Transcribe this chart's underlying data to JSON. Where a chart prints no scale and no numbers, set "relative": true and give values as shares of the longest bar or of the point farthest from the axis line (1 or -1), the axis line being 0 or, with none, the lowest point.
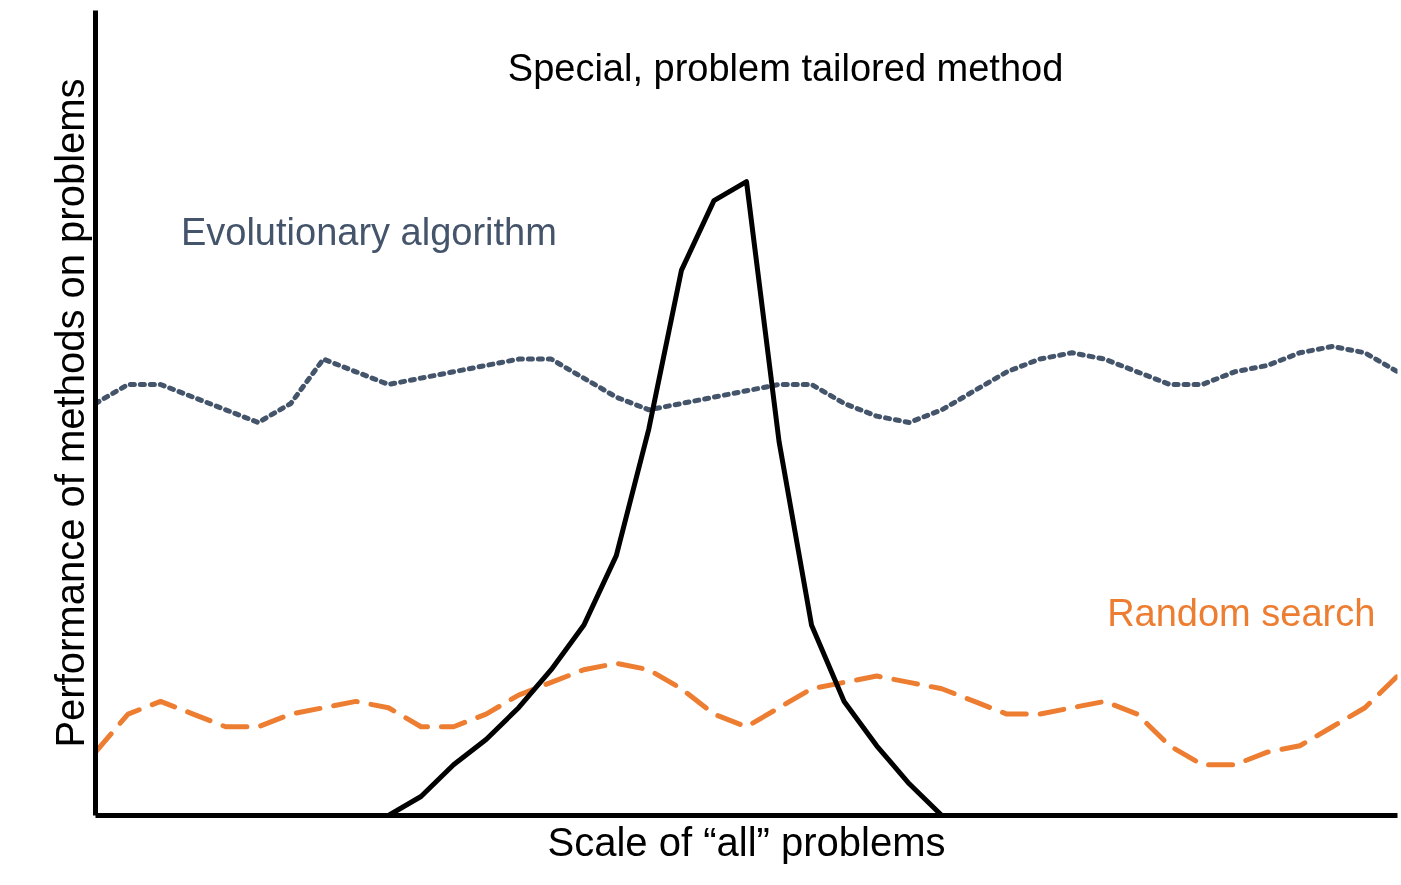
{
  "chart_data": {
    "type": "line",
    "relative": true,
    "xlabel": "Scale of “all” problems",
    "ylabel": "Performance of methods on problems",
    "categories": [
      null,
      null,
      null,
      null,
      null,
      null,
      null,
      null,
      null,
      null,
      null,
      null,
      null,
      null,
      null,
      null,
      null,
      null,
      null,
      null,
      null,
      null,
      null,
      null,
      null,
      null,
      null,
      null,
      null,
      null,
      null,
      null,
      null,
      null,
      null,
      null,
      null,
      null,
      null,
      null,
      null
    ],
    "series": [
      {
        "name": "Evolutionary algorithm",
        "color": "#44546a",
        "line_style": "dotted",
        "values": [
          0.65,
          0.68,
          0.68,
          0.66,
          0.64,
          0.62,
          0.65,
          0.72,
          0.7,
          0.68,
          0.69,
          0.7,
          0.71,
          0.72,
          0.72,
          0.69,
          0.66,
          0.64,
          0.65,
          0.66,
          0.67,
          0.68,
          0.68,
          0.65,
          0.63,
          0.62,
          0.64,
          0.67,
          0.7,
          0.72,
          0.73,
          0.72,
          0.7,
          0.68,
          0.68,
          0.7,
          0.71,
          0.73,
          0.74,
          0.73,
          0.7
        ]
      },
      {
        "name": "Random search",
        "color": "#ed7d31",
        "line_style": "dashed",
        "values": [
          0.1,
          0.16,
          0.18,
          0.16,
          0.14,
          0.14,
          0.16,
          0.17,
          0.18,
          0.17,
          0.14,
          0.14,
          0.16,
          0.19,
          0.21,
          0.23,
          0.24,
          0.23,
          0.2,
          0.16,
          0.14,
          0.17,
          0.2,
          0.21,
          0.22,
          0.21,
          0.2,
          0.18,
          0.16,
          0.16,
          0.17,
          0.18,
          0.16,
          0.11,
          0.08,
          0.08,
          0.1,
          0.11,
          0.14,
          0.17,
          0.22
        ]
      },
      {
        "name": "Special, problem tailored method",
        "color": "#000000",
        "line_style": "solid",
        "values": [
          null,
          null,
          null,
          null,
          null,
          null,
          null,
          null,
          null,
          0,
          0.03,
          0.08,
          0.12,
          0.17,
          0.23,
          0.3,
          0.41,
          0.61,
          0.86,
          0.97,
          1.0,
          0.59,
          0.3,
          0.18,
          0.11,
          0.05,
          0,
          null,
          null,
          null,
          null,
          null,
          null,
          null,
          null,
          null,
          null,
          null,
          null,
          null,
          null
        ]
      }
    ]
  }
}
